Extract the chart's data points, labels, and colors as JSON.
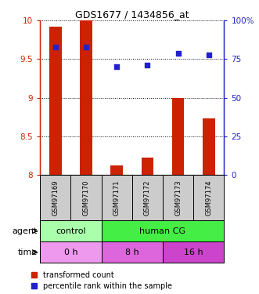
{
  "title": "GDS1677 / 1434856_at",
  "samples": [
    "GSM97169",
    "GSM97170",
    "GSM97171",
    "GSM97172",
    "GSM97173",
    "GSM97174"
  ],
  "bar_values": [
    9.92,
    10.0,
    8.12,
    8.22,
    9.0,
    8.73
  ],
  "percentile_values": [
    83,
    83,
    70,
    71,
    79,
    78
  ],
  "bar_color": "#cc2200",
  "dot_color": "#2222cc",
  "ylim_left": [
    8.0,
    10.0
  ],
  "ylim_right": [
    0,
    100
  ],
  "yticks_left": [
    8.0,
    8.5,
    9.0,
    9.5,
    10.0
  ],
  "yticks_right": [
    0,
    25,
    50,
    75,
    100
  ],
  "ytick_labels_left": [
    "8",
    "8.5",
    "9",
    "9.5",
    "10"
  ],
  "ytick_labels_right": [
    "0",
    "25",
    "50",
    "75",
    "100%"
  ],
  "agent_labels": [
    {
      "text": "control",
      "cols": [
        0,
        1
      ],
      "color": "#aaffaa"
    },
    {
      "text": "human CG",
      "cols": [
        2,
        3,
        4,
        5
      ],
      "color": "#44ee44"
    }
  ],
  "time_labels": [
    {
      "text": "0 h",
      "cols": [
        0,
        1
      ],
      "color": "#ee99ee"
    },
    {
      "text": "8 h",
      "cols": [
        2,
        3
      ],
      "color": "#dd66dd"
    },
    {
      "text": "16 h",
      "cols": [
        4,
        5
      ],
      "color": "#cc44cc"
    }
  ],
  "agent_row_label": "agent",
  "time_row_label": "time",
  "legend_bar_label": "transformed count",
  "legend_dot_label": "percentile rank within the sample",
  "bg_color": "#ffffff",
  "sample_bg_color": "#cccccc"
}
